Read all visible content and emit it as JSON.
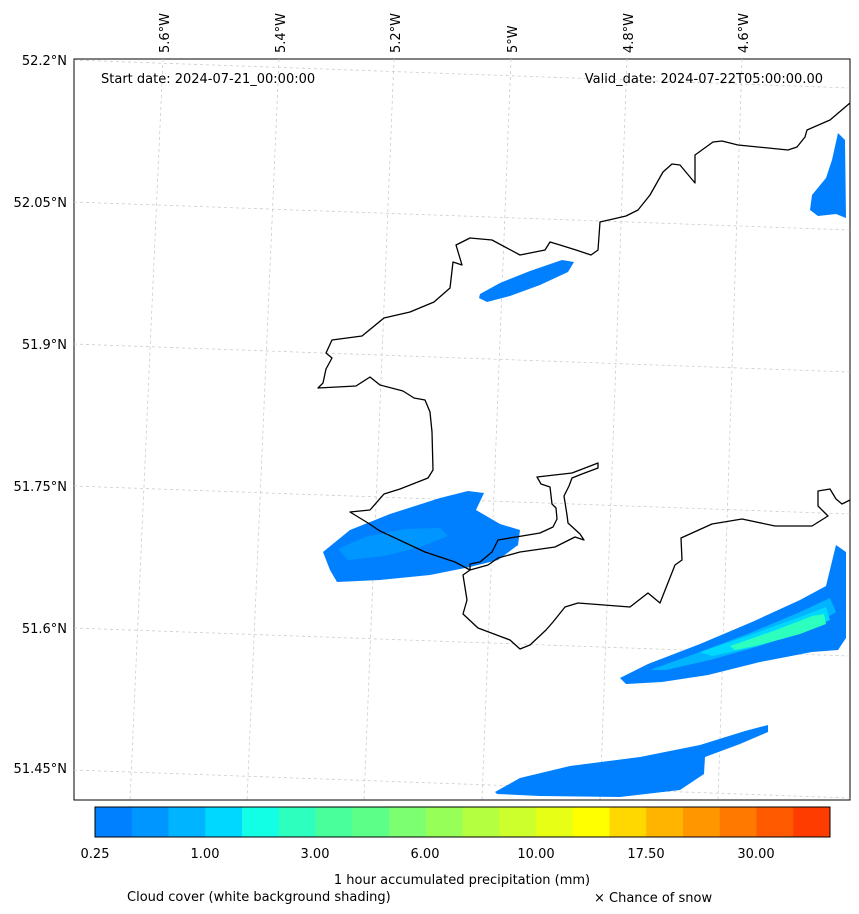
{
  "header": {
    "start_date": "Start date: 2024-07-21_00:00:00",
    "valid_date": "Valid_date: 2024-07-22T05:00:00.00"
  },
  "axes": {
    "lon_labels": [
      "5.6°W",
      "5.4°W",
      "5.2°W",
      "5°W",
      "4.8°W",
      "4.6°W"
    ],
    "lat_labels": [
      "52.2°N",
      "52.05°N",
      "51.9°N",
      "51.75°N",
      "51.6°N",
      "51.45°N"
    ]
  },
  "colorbar": {
    "tick_labels": [
      "0.25",
      "1.00",
      "3.00",
      "6.00",
      "10.00",
      "17.50",
      "30.00"
    ],
    "colors": [
      "#0080ff",
      "#0096ff",
      "#00b4ff",
      "#00d8ff",
      "#12ffe6",
      "#2cffbe",
      "#48ff9c",
      "#5cff88",
      "#7cff70",
      "#96ff58",
      "#b4ff40",
      "#ccff2c",
      "#e6ff14",
      "#ffff00",
      "#ffd800",
      "#ffb400",
      "#ff9600",
      "#ff7800",
      "#ff5a00",
      "#ff3c00"
    ],
    "label": "1 hour accumulated precipitation (mm)"
  },
  "footer": {
    "cloud_note": "Cloud cover (white background shading)",
    "snow_note": "× Chance of snow"
  }
}
